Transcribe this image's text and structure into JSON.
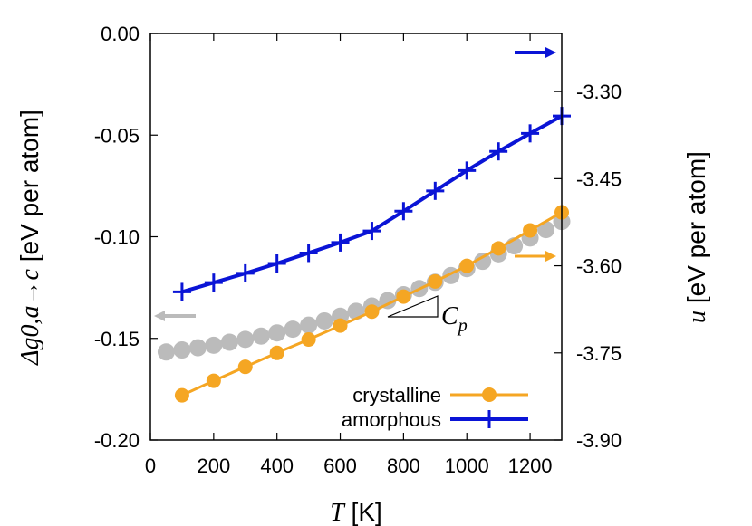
{
  "chart_data": {
    "type": "line",
    "x_axis": {
      "range": [
        0,
        1300
      ],
      "ticks": [
        0,
        200,
        400,
        600,
        800,
        1000,
        1200
      ],
      "tick_labels": [
        "0",
        "200",
        "400",
        "600",
        "800",
        "1000",
        "1200"
      ],
      "label_var": "T",
      "label_unit": " [K]"
    },
    "y_left": {
      "range": [
        -0.2,
        0.0
      ],
      "ticks": [
        0.0,
        -0.05,
        -0.1,
        -0.15,
        -0.2
      ],
      "tick_labels": [
        "0.00",
        "-0.05",
        "-0.10",
        "-0.15",
        "-0.20"
      ],
      "label_var": "Δg0,a→c",
      "label_unit": " [eV per atom]"
    },
    "y_right": {
      "range": [
        -3.9,
        -3.2
      ],
      "ticks": [
        -3.3,
        -3.45,
        -3.6,
        -3.75,
        -3.9
      ],
      "tick_labels": [
        "-3.30",
        "-3.45",
        "-3.60",
        "-3.75",
        "-3.90"
      ],
      "label_var": "u",
      "label_unit": " [eV per atom]"
    },
    "series": [
      {
        "name": "crystalline",
        "axis": "right",
        "color": "#f5a623",
        "marker": "circle",
        "x": [
          100,
          200,
          300,
          400,
          500,
          600,
          700,
          800,
          900,
          1000,
          1100,
          1200,
          1300
        ],
        "y": [
          -3.823,
          -3.798,
          -3.774,
          -3.75,
          -3.727,
          -3.703,
          -3.679,
          -3.653,
          -3.627,
          -3.6,
          -3.57,
          -3.539,
          -3.508
        ]
      },
      {
        "name": "amorphous",
        "axis": "right",
        "color": "#0a14d6",
        "marker": "plus",
        "x": [
          100,
          200,
          300,
          400,
          500,
          600,
          700,
          800,
          900,
          1000,
          1100,
          1200,
          1300
        ],
        "y": [
          -3.645,
          -3.629,
          -3.613,
          -3.596,
          -3.578,
          -3.56,
          -3.54,
          -3.506,
          -3.471,
          -3.436,
          -3.403,
          -3.372,
          -3.342
        ]
      },
      {
        "name": "",
        "axis": "left",
        "color": "#bbbbbb",
        "marker": "circle",
        "x": [
          50,
          100,
          150,
          200,
          250,
          300,
          350,
          400,
          450,
          500,
          550,
          600,
          650,
          700,
          750,
          800,
          850,
          900,
          950,
          1000,
          1050,
          1100,
          1150,
          1200,
          1250,
          1300
        ],
        "y": [
          -0.1567,
          -0.1557,
          -0.1546,
          -0.1534,
          -0.1519,
          -0.1505,
          -0.1489,
          -0.1473,
          -0.1455,
          -0.1435,
          -0.1414,
          -0.1391,
          -0.1367,
          -0.1341,
          -0.1314,
          -0.1285,
          -0.1255,
          -0.1224,
          -0.1191,
          -0.1157,
          -0.1121,
          -0.1084,
          -0.1045,
          -0.1006,
          -0.0965,
          -0.0925
        ]
      }
    ],
    "legend": {
      "placement": "bottom-right",
      "entries": [
        "crystalline",
        "amorphous"
      ]
    },
    "annotation": {
      "var": "C",
      "sub": "p"
    },
    "indicator_arrows": [
      {
        "target": "right",
        "color": "#0a14d6"
      },
      {
        "target": "right",
        "color": "#f5a623"
      },
      {
        "target": "left",
        "color": "#bbbbbb"
      }
    ],
    "grid": false
  }
}
